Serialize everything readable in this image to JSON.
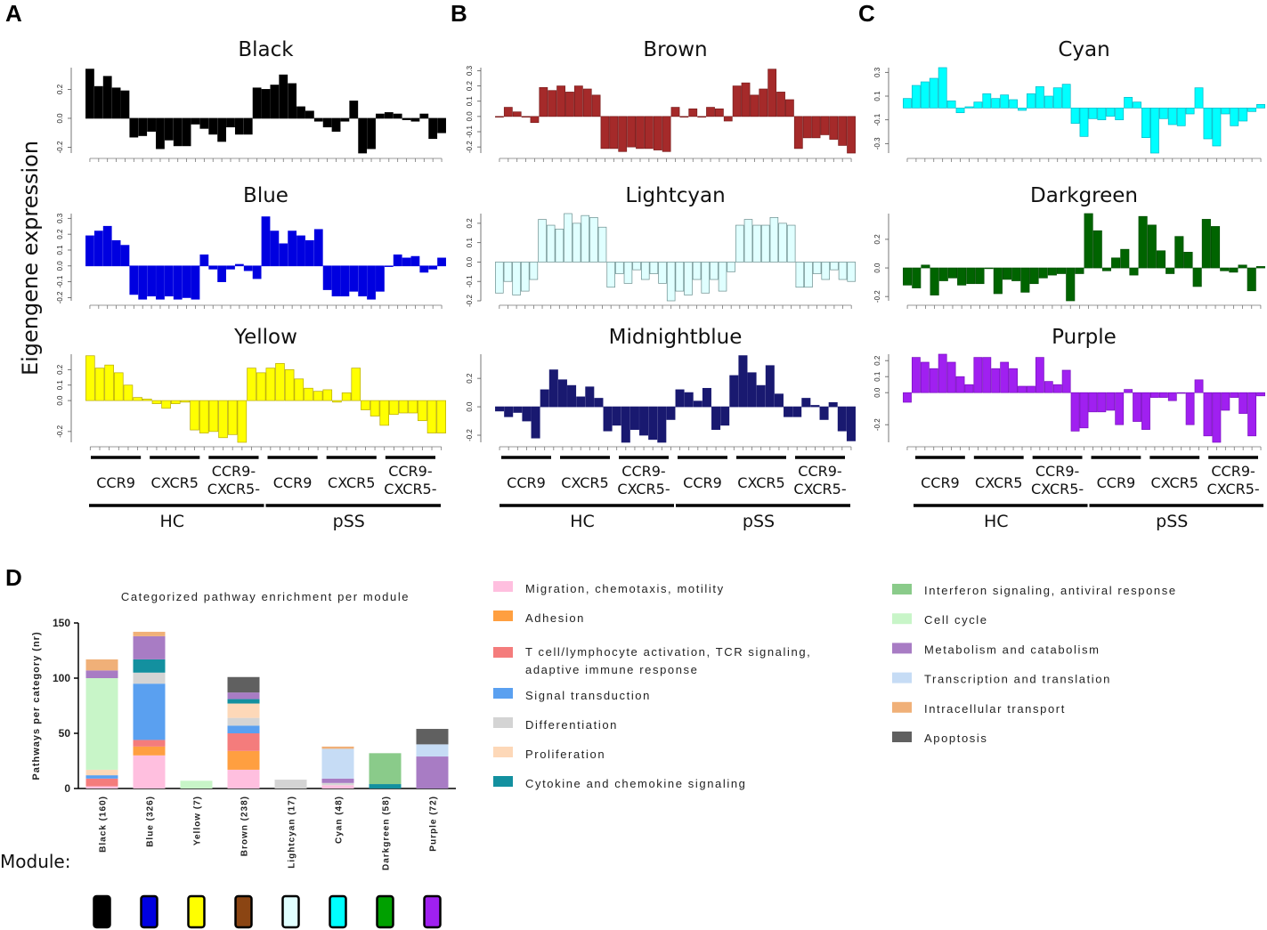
{
  "panel_letters": {
    "A": "A",
    "B": "B",
    "C": "C",
    "D": "D"
  },
  "y_axis_label": "Eigengene expression",
  "group_labels": {
    "ccr9": "CCR9",
    "cxcr5": "CXCR5",
    "dn_line1": "CCR9-",
    "dn_line2": "CXCR5-"
  },
  "condition_labels": {
    "hc": "HC",
    "pss": "pSS"
  },
  "module_label": "Module:",
  "colors": {
    "black": "#000000",
    "blue": "#0000e0",
    "yellow": "#ffff00",
    "brown": "#a52a2a",
    "lightcyan": "#e0ffff",
    "midnightblue": "#191970",
    "cyan": "#00ffff",
    "darkgreen": "#006400",
    "purple": "#a020f0"
  },
  "chart_data": [
    {
      "type": "bar",
      "panel": "A",
      "title": "Black",
      "color": "#000000",
      "edge": "#000000",
      "yticks": [
        "0.2",
        "0.0",
        "-0.2"
      ],
      "ylim": [
        -0.24,
        0.35
      ],
      "values": [
        0.34,
        0.22,
        0.29,
        0.21,
        0.19,
        -0.13,
        -0.12,
        -0.09,
        -0.21,
        -0.15,
        -0.19,
        -0.19,
        -0.04,
        -0.07,
        -0.11,
        -0.16,
        -0.06,
        -0.11,
        -0.11,
        0.21,
        0.2,
        0.23,
        0.3,
        0.24,
        0.08,
        0.05,
        -0.02,
        -0.06,
        -0.09,
        -0.02,
        0.12,
        -0.24,
        -0.21,
        0.03,
        0.04,
        0.03,
        -0.01,
        -0.02,
        0.03,
        -0.14,
        -0.1
      ]
    },
    {
      "type": "bar",
      "panel": "A",
      "title": "Blue",
      "color": "#0000e0",
      "edge": "#0000e0",
      "yticks": [
        "0.3",
        "0.2",
        "0.1",
        "0.0",
        "-0.1",
        "-0.2"
      ],
      "ylim": [
        -0.22,
        0.33
      ],
      "values": [
        0.19,
        0.22,
        0.25,
        0.16,
        0.13,
        -0.18,
        -0.21,
        -0.19,
        -0.21,
        -0.19,
        -0.21,
        -0.2,
        -0.21,
        0.07,
        -0.02,
        -0.1,
        -0.02,
        0.01,
        -0.03,
        -0.08,
        0.31,
        0.22,
        0.14,
        0.22,
        0.19,
        0.16,
        0.23,
        -0.15,
        -0.19,
        -0.19,
        -0.16,
        -0.19,
        -0.21,
        -0.16,
        0.0,
        0.07,
        0.05,
        0.06,
        -0.04,
        -0.02,
        0.05
      ]
    },
    {
      "type": "bar",
      "panel": "A",
      "title": "Yellow",
      "color": "#ffff00",
      "edge": "#b7a900",
      "yticks": [
        "0.2",
        "0.1",
        "0.0",
        "-0.2"
      ],
      "ylim": [
        -0.27,
        0.3
      ],
      "values": [
        0.29,
        0.21,
        0.23,
        0.18,
        0.1,
        0.02,
        0.01,
        -0.02,
        -0.05,
        -0.02,
        -0.01,
        -0.19,
        -0.21,
        -0.2,
        -0.24,
        -0.22,
        -0.27,
        0.21,
        0.18,
        0.21,
        0.24,
        0.2,
        0.14,
        0.08,
        0.06,
        0.07,
        -0.01,
        0.05,
        0.21,
        -0.06,
        -0.1,
        -0.16,
        -0.09,
        -0.08,
        -0.08,
        -0.13,
        -0.21,
        -0.21
      ]
    },
    {
      "type": "bar",
      "panel": "B",
      "title": "Brown",
      "color": "#a52a2a",
      "edge": "#7a1c1c",
      "yticks": [
        "0.3",
        "0.2",
        "0.1",
        "0.0",
        "-0.1",
        "-0.2"
      ],
      "ylim": [
        -0.24,
        0.32
      ],
      "values": [
        0.0,
        0.06,
        0.03,
        0.0,
        -0.04,
        0.19,
        0.17,
        0.2,
        0.16,
        0.2,
        0.18,
        0.14,
        -0.21,
        -0.21,
        -0.23,
        -0.2,
        -0.21,
        -0.21,
        -0.22,
        -0.23,
        0.06,
        0.0,
        0.05,
        0.0,
        0.06,
        0.05,
        -0.03,
        0.2,
        0.22,
        0.14,
        0.18,
        0.31,
        0.16,
        0.11,
        -0.21,
        -0.14,
        -0.14,
        -0.12,
        -0.15,
        -0.19,
        -0.24
      ]
    },
    {
      "type": "bar",
      "panel": "B",
      "title": "Lightcyan",
      "color": "#e0ffff",
      "edge": "#6b8e8e",
      "yticks": [
        "0.2",
        "0.1",
        "0.0",
        "-0.1",
        "-0.2"
      ],
      "ylim": [
        -0.2,
        0.25
      ],
      "values": [
        -0.16,
        -0.1,
        -0.17,
        -0.15,
        -0.09,
        0.22,
        0.19,
        0.17,
        0.25,
        0.2,
        0.24,
        0.23,
        0.18,
        -0.13,
        -0.06,
        -0.11,
        -0.04,
        -0.09,
        -0.06,
        -0.11,
        -0.2,
        -0.15,
        -0.17,
        -0.09,
        -0.16,
        -0.09,
        -0.15,
        -0.05,
        0.19,
        0.22,
        0.19,
        0.19,
        0.23,
        0.2,
        0.19,
        -0.13,
        -0.13,
        -0.06,
        -0.09,
        -0.04,
        -0.09,
        -0.1
      ]
    },
    {
      "type": "bar",
      "panel": "B",
      "title": "Midnightblue",
      "color": "#191970",
      "edge": "#191970",
      "yticks": [
        "0.2",
        "0.0",
        "-0.2"
      ],
      "ylim": [
        -0.25,
        0.37
      ],
      "values": [
        -0.03,
        -0.07,
        -0.04,
        -0.1,
        -0.22,
        0.12,
        0.26,
        0.19,
        0.15,
        0.07,
        0.14,
        0.06,
        -0.17,
        -0.13,
        -0.25,
        -0.16,
        -0.2,
        -0.23,
        -0.25,
        -0.09,
        0.12,
        0.1,
        0.04,
        0.13,
        -0.16,
        -0.13,
        0.22,
        0.36,
        0.24,
        0.15,
        0.29,
        0.09,
        -0.07,
        -0.07,
        0.06,
        0.01,
        -0.09,
        0.03,
        -0.17,
        -0.24
      ]
    },
    {
      "type": "bar",
      "panel": "C",
      "title": "Cyan",
      "color": "#00ffff",
      "edge": "#00b8c8",
      "yticks": [
        "0.3",
        "0.1",
        "-0.1",
        "-0.3"
      ],
      "ylim": [
        -0.38,
        0.34
      ],
      "values": [
        0.08,
        0.19,
        0.22,
        0.25,
        0.34,
        0.06,
        -0.04,
        0.01,
        0.05,
        0.12,
        0.08,
        0.11,
        0.07,
        -0.02,
        0.12,
        0.18,
        0.1,
        0.17,
        0.2,
        -0.13,
        -0.24,
        -0.09,
        -0.1,
        -0.07,
        -0.1,
        0.09,
        0.05,
        -0.25,
        -0.38,
        -0.09,
        -0.14,
        -0.15,
        -0.05,
        0.17,
        -0.26,
        -0.32,
        -0.05,
        -0.15,
        -0.11,
        -0.03,
        0.03
      ]
    },
    {
      "type": "bar",
      "panel": "C",
      "title": "Darkgreen",
      "color": "#006400",
      "edge": "#004d00",
      "yticks": [
        "0.2",
        "0.0",
        "-0.2"
      ],
      "ylim": [
        -0.23,
        0.38
      ],
      "values": [
        -0.12,
        -0.14,
        0.02,
        -0.19,
        -0.09,
        -0.07,
        -0.12,
        -0.11,
        -0.11,
        0.0,
        -0.18,
        -0.08,
        -0.09,
        -0.17,
        -0.11,
        -0.07,
        -0.05,
        -0.04,
        -0.23,
        -0.04,
        0.38,
        0.26,
        -0.02,
        0.07,
        0.13,
        -0.05,
        0.36,
        0.3,
        0.12,
        -0.04,
        0.22,
        0.11,
        -0.13,
        0.34,
        0.29,
        -0.02,
        -0.03,
        0.02,
        -0.16,
        0.01
      ]
    },
    {
      "type": "bar",
      "panel": "C",
      "title": "Purple",
      "color": "#a020f0",
      "edge": "#7a10c0",
      "yticks": [
        "0.2",
        "0.1",
        "0.0",
        "-0.2"
      ],
      "ylim": [
        -0.31,
        0.24
      ],
      "values": [
        -0.06,
        0.22,
        0.19,
        0.15,
        0.24,
        0.19,
        0.1,
        0.05,
        0.22,
        0.22,
        0.15,
        0.19,
        0.15,
        0.04,
        0.04,
        0.22,
        0.07,
        0.05,
        0.14,
        -0.24,
        -0.22,
        -0.12,
        -0.12,
        -0.11,
        -0.2,
        0.02,
        -0.18,
        -0.23,
        -0.03,
        -0.03,
        -0.05,
        0.0,
        -0.2,
        0.08,
        -0.27,
        -0.31,
        -0.11,
        -0.03,
        -0.13,
        -0.27,
        -0.02
      ]
    },
    {
      "type": "bar",
      "panel": "D",
      "stacked": true,
      "title": "Categorized pathway enrichment per module",
      "ylabel": "Pathways per category (nr)",
      "ylim": [
        0,
        150
      ],
      "yticks": [
        "0",
        "50",
        "100",
        "150"
      ],
      "categories": [
        "Black (160)",
        "Blue (326)",
        "Yellow (7)",
        "Brown (238)",
        "Lightcyan (17)",
        "Cyan (48)",
        "Darkgreen (58)",
        "Purple (72)"
      ],
      "swatches": [
        "#000000",
        "#0000e0",
        "#ffff00",
        "#8b4513",
        "#e0ffff",
        "#00ffff",
        "#00a000",
        "#a020f0"
      ],
      "series": [
        {
          "name": "Migration, chemotaxis, motility",
          "color": "#ffbfdf",
          "values": [
            2,
            30,
            0,
            17,
            0,
            3,
            0,
            0
          ]
        },
        {
          "name": "Adhesion",
          "color": "#ff9f40",
          "values": [
            0,
            8,
            0,
            17,
            0,
            0,
            0,
            0
          ]
        },
        {
          "name": "T cell/lymphocyte activation, TCR signaling, adaptive immune response",
          "color": "#f47c7c",
          "values": [
            7,
            6,
            0,
            16,
            0,
            0,
            0,
            0
          ]
        },
        {
          "name": "Signal transduction",
          "color": "#5aa0f0",
          "values": [
            3,
            51,
            0,
            7,
            0,
            0,
            0,
            0
          ]
        },
        {
          "name": "Differentiation",
          "color": "#d4d4d4",
          "values": [
            0,
            10,
            0,
            7,
            8,
            2,
            0,
            0
          ]
        },
        {
          "name": "Proliferation",
          "color": "#fdd8b8",
          "values": [
            5,
            0,
            0,
            13,
            0,
            0,
            0,
            0
          ]
        },
        {
          "name": "Cytokine and chemokine signaling",
          "color": "#13909f",
          "values": [
            0,
            12,
            0,
            4,
            0,
            0,
            4,
            0
          ]
        },
        {
          "name": "Interferon signaling, antiviral response",
          "color": "#8acb8a",
          "values": [
            0,
            0,
            0,
            0,
            0,
            0,
            28,
            0
          ]
        },
        {
          "name": "Cell cycle",
          "color": "#c8f5c8",
          "values": [
            83,
            0,
            7,
            0,
            0,
            0,
            0,
            0
          ]
        },
        {
          "name": "Metabolism and catabolism",
          "color": "#a87cc4",
          "values": [
            7,
            21,
            0,
            6,
            0,
            4,
            0,
            29
          ]
        },
        {
          "name": "Transcription and translation",
          "color": "#c6dcf5",
          "values": [
            0,
            0,
            0,
            0,
            0,
            27,
            0,
            11
          ]
        },
        {
          "name": "Intracellular transport",
          "color": "#f0b078",
          "values": [
            10,
            4,
            0,
            0,
            0,
            2,
            0,
            0
          ]
        },
        {
          "name": "Apoptosis",
          "color": "#606060",
          "values": [
            0,
            0,
            0,
            14,
            0,
            0,
            0,
            14
          ]
        }
      ]
    }
  ]
}
